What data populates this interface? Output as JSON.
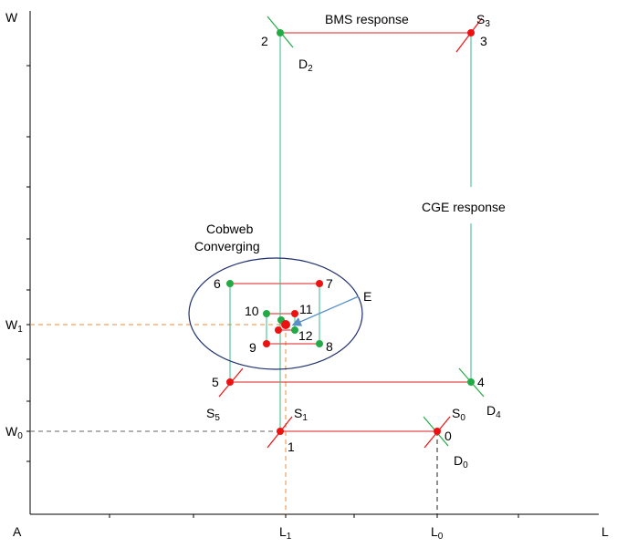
{
  "axes": {
    "y_label": "W",
    "x_label": "L",
    "origin_label": "A"
  },
  "wage_levels": {
    "w1": {
      "main": "W",
      "sub": "1"
    },
    "w0": {
      "main": "W",
      "sub": "0"
    }
  },
  "labor_levels": {
    "l1": {
      "main": "L",
      "sub": "1"
    },
    "l0": {
      "main": "L",
      "sub": "0"
    }
  },
  "annotations": {
    "bms_response": "BMS response",
    "cge_response": "CGE response",
    "cobweb_line1": "Cobweb",
    "cobweb_line2": "Converging",
    "equilibrium": "E"
  },
  "curve_labels": {
    "s3": {
      "main": "S",
      "sub": "3"
    },
    "d2": {
      "main": "D",
      "sub": "2"
    },
    "d4": {
      "main": "D",
      "sub": "4"
    },
    "s5": {
      "main": "S",
      "sub": "5"
    },
    "s1": {
      "main": "S",
      "sub": "1"
    },
    "s0": {
      "main": "S",
      "sub": "0"
    },
    "d0": {
      "main": "D",
      "sub": "0"
    }
  },
  "point_numbers": {
    "p0": "0",
    "p1": "1",
    "p2": "2",
    "p3": "3",
    "p4": "4",
    "p5": "5",
    "p6": "6",
    "p7": "7",
    "p8": "8",
    "p9": "9",
    "p10": "10",
    "p11": "11",
    "p12": "12"
  },
  "colors": {
    "supply_point": "#ee1111",
    "demand_point": "#22aa44",
    "horizontal_path": "#dd2222",
    "vertical_path": "#33bb88",
    "dashed_guide": "#f08a3c",
    "ellipse": "#1f2f6f",
    "arrow": "#5a8fc8",
    "axis": "#000000"
  }
}
